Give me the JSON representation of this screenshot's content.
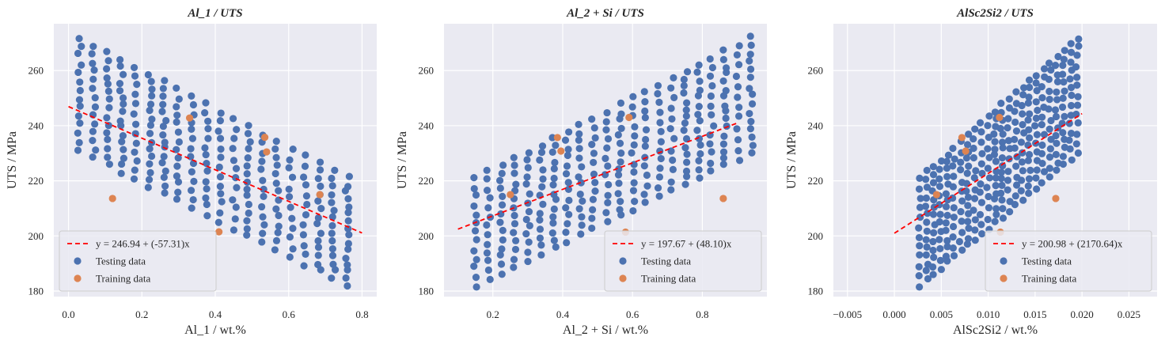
{
  "colors": {
    "testing": "#4c72b0",
    "training": "#dd8452",
    "fit": "#ff0000",
    "panel_bg": "#eaeaf2",
    "grid": "#ffffff"
  },
  "chart_data": [
    {
      "type": "scatter",
      "title": "Al_1 / UTS",
      "xlabel": "Al_1 / wt.%",
      "ylabel": "UTS / MPa",
      "xlim": [
        -0.04,
        0.84
      ],
      "ylim": [
        178,
        277
      ],
      "xticks": [
        "0.0",
        "0.2",
        "0.4",
        "0.6",
        "0.8"
      ],
      "xtick_values": [
        0.0,
        0.2,
        0.4,
        0.6,
        0.8
      ],
      "yticks": [
        "180",
        "200",
        "220",
        "240",
        "260"
      ],
      "ytick_values": [
        180,
        200,
        220,
        240,
        260
      ],
      "grid": true,
      "legend_location": "lower-left",
      "legend": [
        "y = 246.94 + (-57.31)x",
        "Testing data",
        "Training data"
      ],
      "fit": {
        "label": "y = 246.94 + (-57.31)x",
        "intercept": 246.94,
        "slope": -57.31,
        "x_range": [
          0.0,
          0.8
        ]
      },
      "testing": {
        "name": "Testing data",
        "x_min": 0.03,
        "x_max": 0.76,
        "n_cols": 20,
        "top_start": 272,
        "top_end": 221,
        "bot_start": 231,
        "bot_end": 182,
        "spread": 0.011
      },
      "training": {
        "name": "Training data",
        "points": [
          [
            0.12,
            213.6
          ],
          [
            0.33,
            242.8
          ],
          [
            0.41,
            201.5
          ],
          [
            0.535,
            235.8
          ],
          [
            0.54,
            230.5
          ],
          [
            0.685,
            215.0
          ]
        ]
      }
    },
    {
      "type": "scatter",
      "title": "Al_2 + Si / UTS",
      "xlabel": "Al_2 + Si / wt.%",
      "ylabel": "UTS / MPa",
      "xlim": [
        0.06,
        0.985
      ],
      "ylim": [
        178,
        277
      ],
      "xticks": [
        "0.2",
        "0.4",
        "0.6",
        "0.8"
      ],
      "xtick_values": [
        0.2,
        0.4,
        0.6,
        0.8
      ],
      "yticks": [
        "180",
        "200",
        "220",
        "240",
        "260"
      ],
      "ytick_values": [
        180,
        200,
        220,
        240,
        260
      ],
      "grid": true,
      "legend_location": "lower-right",
      "legend": [
        "y = 197.67 + (48.10)x",
        "Testing data",
        "Training data"
      ],
      "fit": {
        "label": "y = 197.67 + (48.10)x",
        "intercept": 197.67,
        "slope": 48.1,
        "x_range": [
          0.1,
          0.9
        ]
      },
      "testing": {
        "name": "Testing data",
        "x_min": 0.15,
        "x_max": 0.94,
        "n_cols": 22,
        "top_start": 221,
        "top_end": 272,
        "bot_start": 182,
        "bot_end": 230,
        "spread": 0.011
      },
      "training": {
        "name": "Training data",
        "points": [
          [
            0.25,
            215.0
          ],
          [
            0.385,
            235.7
          ],
          [
            0.395,
            230.8
          ],
          [
            0.58,
            201.4
          ],
          [
            0.59,
            243.0
          ],
          [
            0.86,
            213.6
          ]
        ]
      }
    },
    {
      "type": "scatter",
      "title": "AlSc2Si2 / UTS",
      "xlabel": "AlSc2Si2 / wt.%",
      "ylabel": "UTS / MPa",
      "xlim": [
        -0.0065,
        0.028
      ],
      "ylim": [
        178,
        277
      ],
      "xticks": [
        "−0.005",
        "0.000",
        "0.005",
        "0.010",
        "0.015",
        "0.020",
        "0.025"
      ],
      "xtick_values": [
        -0.005,
        0.0,
        0.005,
        0.01,
        0.015,
        0.02,
        0.025
      ],
      "yticks": [
        "180",
        "200",
        "220",
        "240",
        "260"
      ],
      "ytick_values": [
        180,
        200,
        220,
        240,
        260
      ],
      "grid": true,
      "legend_location": "lower-right",
      "legend": [
        "y = 200.98 + (2170.64)x",
        "Testing data",
        "Training data"
      ],
      "fit": {
        "label": "y = 200.98 + (2170.64)x",
        "intercept": 200.98,
        "slope": 2170.64,
        "x_range": [
          0.0,
          0.02
        ]
      },
      "testing": {
        "name": "Testing data",
        "x_min": 0.0027,
        "x_max": 0.0195,
        "n_cols": 24,
        "top_start": 221,
        "top_end": 272,
        "bot_start": 182,
        "bot_end": 230,
        "spread": 0.0003
      },
      "training": {
        "name": "Training data",
        "points": [
          [
            0.0045,
            215.0
          ],
          [
            0.0072,
            235.7
          ],
          [
            0.0076,
            230.8
          ],
          [
            0.0113,
            201.4
          ],
          [
            0.0112,
            243.0
          ],
          [
            0.0172,
            213.6
          ]
        ]
      }
    }
  ]
}
